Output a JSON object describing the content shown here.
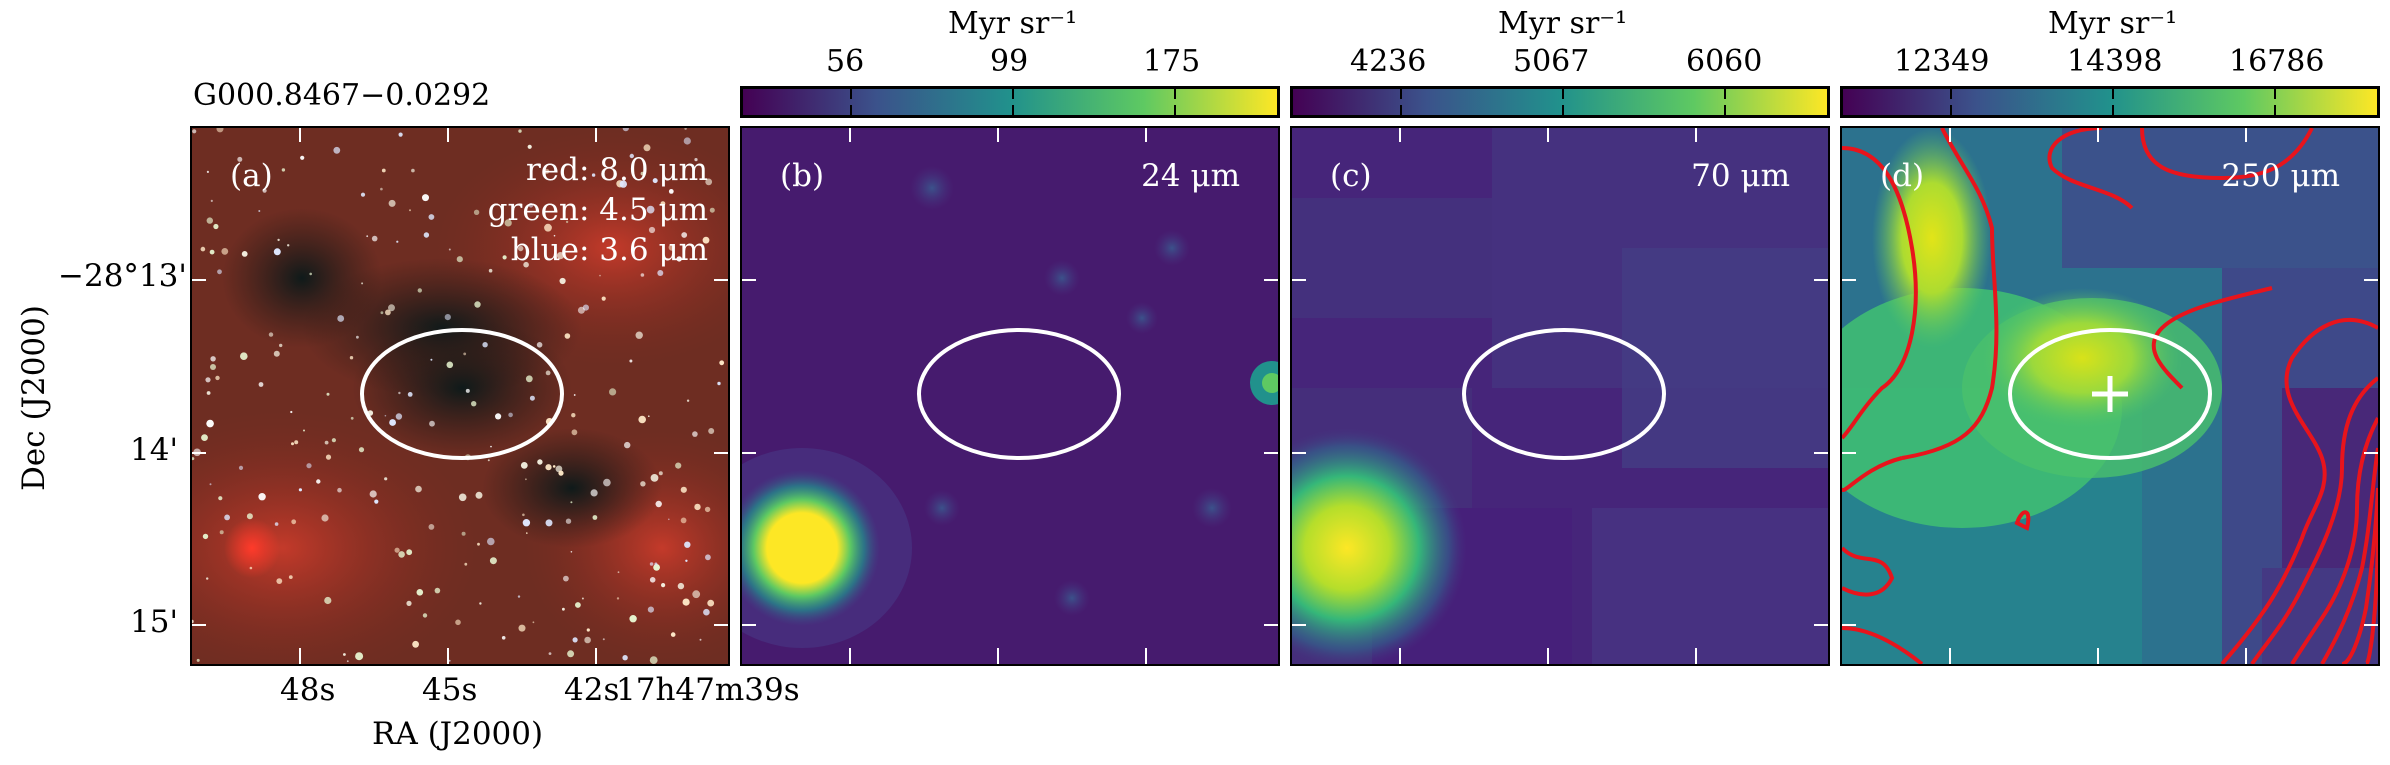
{
  "source_name": "G000.8467−0.0292",
  "axes": {
    "ylabel": "Dec (J2000)",
    "xlabel": "RA (J2000)",
    "dec_ticks": [
      "−28°13'",
      "14'",
      "15'"
    ],
    "ra_ticks": [
      "48s",
      "45s",
      "42s",
      "17h47m39s"
    ]
  },
  "panels": [
    {
      "label": "(a)",
      "legend": [
        "red: 8.0 μm",
        "green: 4.5 μm",
        "blue: 3.6 μm"
      ]
    },
    {
      "label": "(b)",
      "band": "24 μm"
    },
    {
      "label": "(c)",
      "band": "70 μm"
    },
    {
      "label": "(d)",
      "band": "250 μm"
    }
  ],
  "colorbars": [
    {
      "unit": "Myr sr⁻¹",
      "ticks": [
        "56",
        "99",
        "175"
      ]
    },
    {
      "unit": "Myr sr⁻¹",
      "ticks": [
        "4236",
        "5067",
        "6060"
      ]
    },
    {
      "unit": "Myr sr⁻¹",
      "ticks": [
        "12349",
        "14398",
        "16786"
      ]
    }
  ],
  "colors": {
    "viridis_low": "#440154",
    "viridis_high": "#fde725",
    "contour": "#e8141c",
    "ellipse": "#ffffff"
  }
}
